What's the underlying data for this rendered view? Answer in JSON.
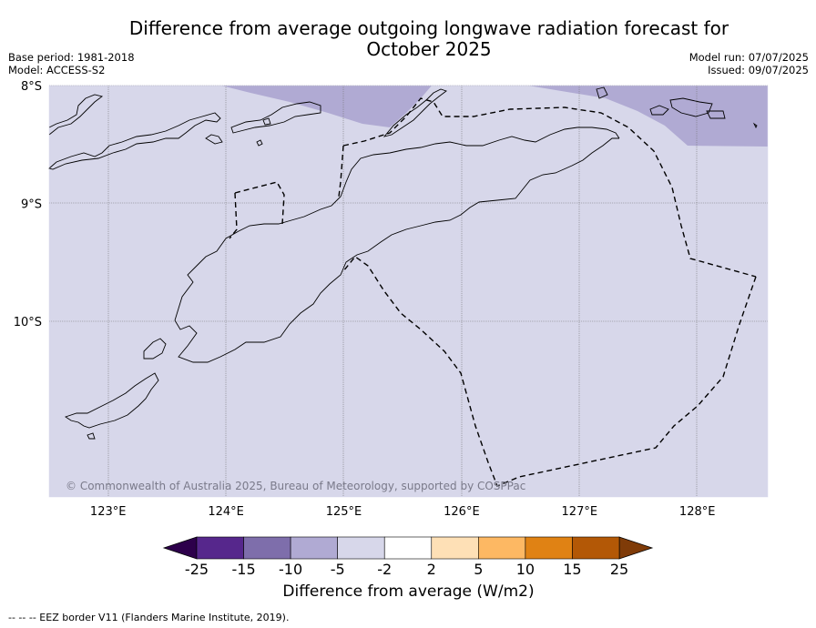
{
  "title": "Difference from average outgoing longwave radiation forecast for October 2025",
  "header_left": {
    "base_period": "Base period: 1981-2018",
    "model": "Model: ACCESS-S2"
  },
  "header_right": {
    "model_run": "Model run: 07/07/2025",
    "issued": "Issued: 09/07/2025"
  },
  "map": {
    "lon_range": [
      122.5,
      128.6
    ],
    "lat_range": [
      -11.5,
      -8.0
    ],
    "lon_ticks": [
      {
        "value": 123,
        "label": "123°E"
      },
      {
        "value": 124,
        "label": "124°E"
      },
      {
        "value": 125,
        "label": "125°E"
      },
      {
        "value": 126,
        "label": "126°E"
      },
      {
        "value": 127,
        "label": "127°E"
      },
      {
        "value": 128,
        "label": "128°E"
      }
    ],
    "lat_ticks": [
      {
        "value": -8,
        "label": "8°S"
      },
      {
        "value": -9,
        "label": "9°S"
      },
      {
        "value": -10,
        "label": "10°S"
      }
    ],
    "background_fill": "#d7d7ea",
    "anomaly_fill": "#b0aad3",
    "copyright": "© Commonwealth of Australia 2025, Bureau of Meteorology, supported by COSPPac"
  },
  "colorbar": {
    "ticks": [
      "-25",
      "-15",
      "-10",
      "-5",
      "-2",
      "2",
      "5",
      "10",
      "15",
      "25"
    ],
    "colors": [
      "#56278c",
      "#7e6eab",
      "#b0aad3",
      "#d7d7ea",
      "#ffffff",
      "#fee0b6",
      "#fdb863",
      "#e08214",
      "#b35806"
    ],
    "under_color": "#2d004b",
    "over_color": "#7f3b08",
    "label": "Difference from average (W/m2)"
  },
  "footer": "--  --  -- EEZ border V11 (Flanders Marine Institute, 2019)."
}
